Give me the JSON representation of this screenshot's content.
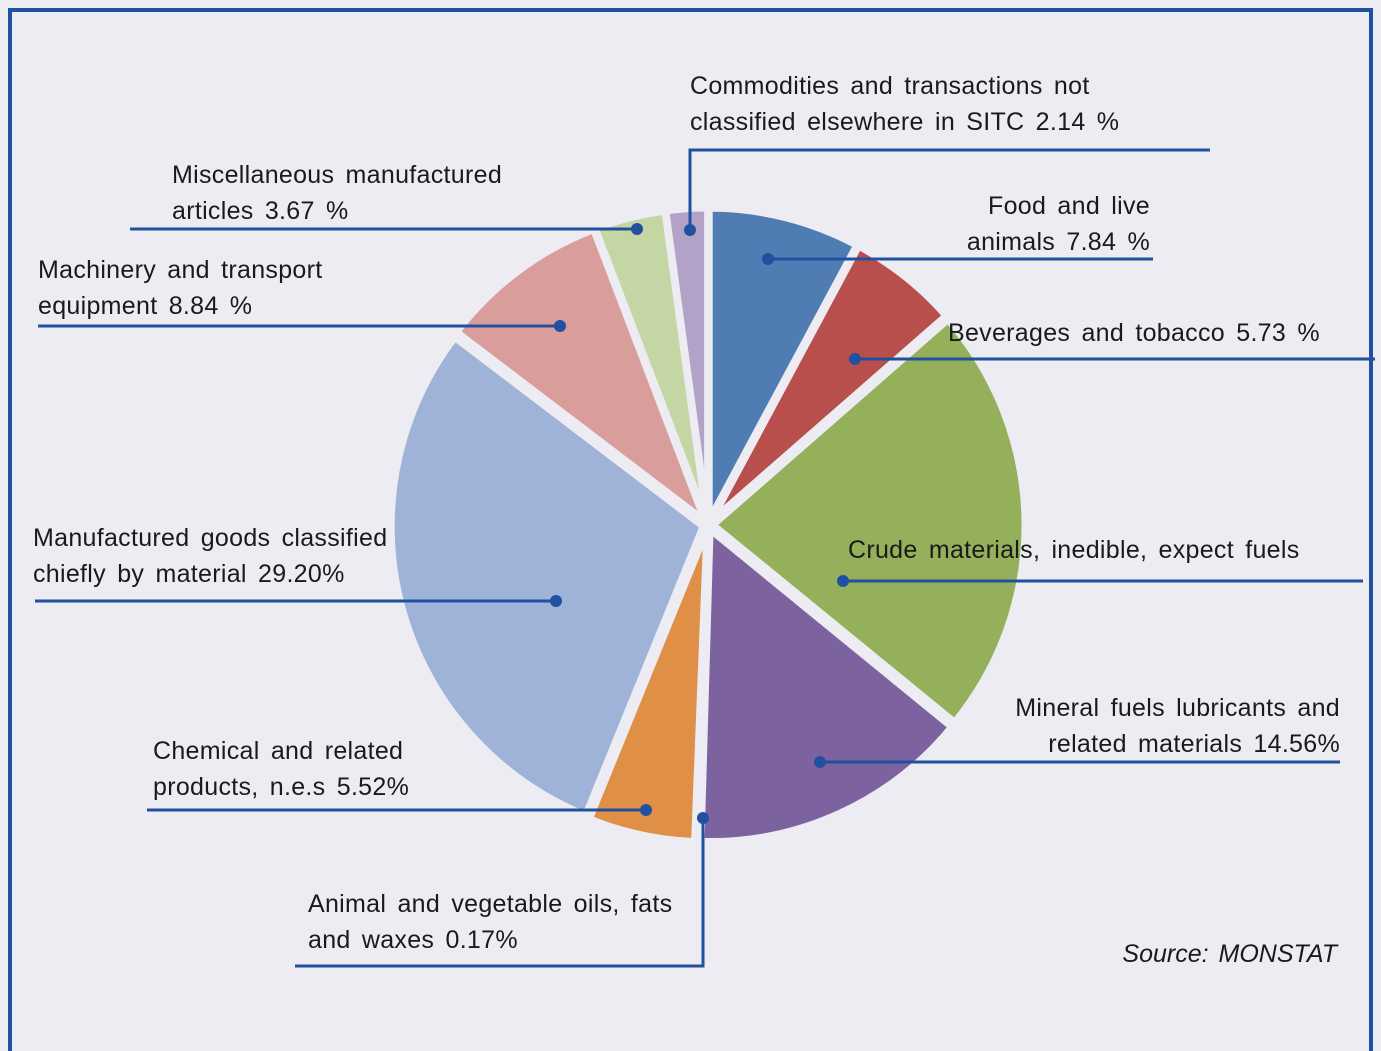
{
  "chart_data": {
    "type": "pie",
    "categories": [
      "Food and live animals",
      "Beverages and tobacco",
      "Crude materials, inedible, expect fuels",
      "Mineral fuels lubricants and related materials",
      "Animal and vegetable oils, fats and waxes",
      "Chemical and related products, n.e.s",
      "Manufactured goods classified chiefly by material",
      "Machinery and transport equipment",
      "Miscellaneous manufactured articles",
      "Commodities and transactions not classified elsewhere in SITC"
    ],
    "values": [
      7.84,
      5.73,
      22.33,
      14.56,
      0.17,
      5.52,
      29.2,
      8.84,
      3.67,
      2.14
    ],
    "value_labels": [
      "7.84 %",
      "5.73 %",
      null,
      "14.56%",
      "0.17%",
      "5.52%",
      "29.20%",
      "8.84 %",
      "3.67 %",
      "2.14 %"
    ],
    "colors": [
      "#4f7db3",
      "#b84f4c",
      "#94b05a",
      "#7d62a0",
      "#a9c0e0",
      "#e08f46",
      "#9eb3d7",
      "#d99d9c",
      "#c4d6a3",
      "#b2a2c7"
    ],
    "source": "Source: MONSTAT"
  }
}
